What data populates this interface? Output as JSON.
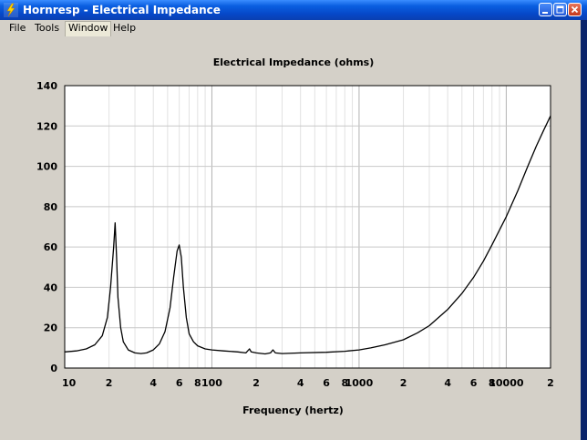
{
  "window": {
    "title": "Hornresp - Electrical Impedance",
    "icon": "hornresp-lightning-icon",
    "controls": [
      "minimize-icon",
      "maximize-icon",
      "close-icon"
    ]
  },
  "menu": {
    "items": [
      {
        "label": "File"
      },
      {
        "label": "Tools"
      },
      {
        "label": "Window"
      },
      {
        "label": "Help"
      }
    ]
  },
  "chart_data": {
    "type": "line",
    "title": "Electrical Impedance (ohms)",
    "xlabel": "Frequency (hertz)",
    "ylabel": "",
    "xscale": "log",
    "xlim": [
      10,
      20000
    ],
    "ylim": [
      0,
      140
    ],
    "y_ticks": [
      0,
      20,
      40,
      60,
      80,
      100,
      120,
      140
    ],
    "x_tick_labels": [
      {
        "value": 10,
        "label": "10"
      },
      {
        "value": 20,
        "label": "2"
      },
      {
        "value": 40,
        "label": "4"
      },
      {
        "value": 60,
        "label": "6"
      },
      {
        "value": 80,
        "label": "8"
      },
      {
        "value": 100,
        "label": "100"
      },
      {
        "value": 200,
        "label": "2"
      },
      {
        "value": 400,
        "label": "4"
      },
      {
        "value": 600,
        "label": "6"
      },
      {
        "value": 800,
        "label": "8"
      },
      {
        "value": 1000,
        "label": "1000"
      },
      {
        "value": 2000,
        "label": "2"
      },
      {
        "value": 4000,
        "label": "4"
      },
      {
        "value": 6000,
        "label": "6"
      },
      {
        "value": 8000,
        "label": "8"
      },
      {
        "value": 10000,
        "label": "10000"
      },
      {
        "value": 20000,
        "label": "2"
      }
    ],
    "grid": true,
    "line_color": "#000000",
    "series": [
      {
        "x": [
          10,
          12,
          14,
          16,
          18,
          19.5,
          20.5,
          21.5,
          22,
          22.5,
          23,
          24,
          25,
          27,
          30,
          33,
          36,
          40,
          44,
          48,
          52,
          55,
          58,
          60,
          62,
          64,
          67,
          70,
          75,
          80,
          90,
          100,
          120,
          150,
          170,
          180,
          185,
          200,
          230,
          250,
          260,
          270,
          300,
          400,
          600,
          800,
          1000,
          1200,
          1500,
          2000,
          2500,
          3000,
          4000,
          5000,
          6000,
          7000,
          8000,
          10000,
          12000,
          14000,
          16000,
          18000,
          20000
        ],
        "y": [
          8,
          8.5,
          9.5,
          11.5,
          16,
          25,
          40,
          60,
          72,
          55,
          35,
          20,
          13,
          9,
          7.5,
          7.2,
          7.5,
          9,
          12,
          18,
          30,
          45,
          58,
          61,
          55,
          40,
          25,
          17,
          13,
          11,
          9.5,
          9,
          8.5,
          8,
          7.5,
          9.5,
          8,
          7.5,
          7,
          7.5,
          9,
          7.5,
          7.2,
          7.5,
          7.8,
          8.3,
          9,
          10,
          11.5,
          14,
          17.5,
          21,
          29,
          37,
          45,
          53,
          61,
          75,
          88,
          100,
          110,
          118,
          125
        ]
      }
    ]
  }
}
